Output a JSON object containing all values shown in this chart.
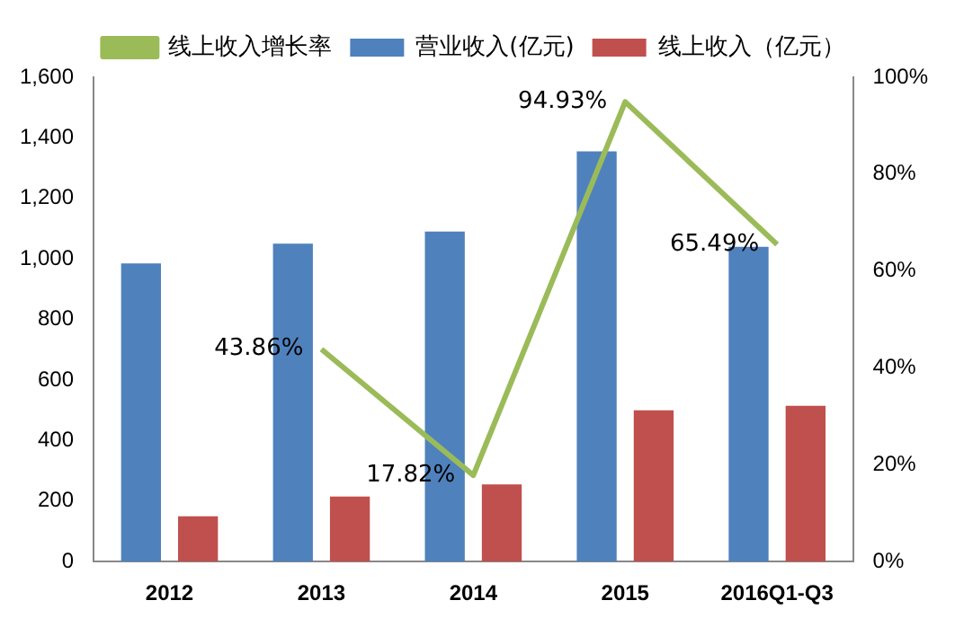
{
  "chart_data": {
    "type": "bar",
    "categories": [
      "2012",
      "2013",
      "2014",
      "2015",
      "2016Q1-Q3"
    ],
    "series": [
      {
        "name": "营业收入(亿元)",
        "color": "#4f81bd",
        "values": [
          985,
          1050,
          1090,
          1355,
          1040
        ]
      },
      {
        "name": "线上收入（亿元）",
        "color": "#c0504d",
        "values": [
          150,
          215,
          255,
          500,
          515
        ]
      },
      {
        "name": "线上收入增长率",
        "type": "line",
        "axis": "y2",
        "color": "#9bbb59",
        "values": [
          null,
          43.86,
          17.82,
          94.93,
          65.49
        ],
        "value_labels": [
          null,
          "43.86%",
          "17.82%",
          "94.93%",
          "65.49%"
        ],
        "marker": "none"
      }
    ],
    "ylim": [
      0,
      1600
    ],
    "yticks": [
      0,
      200,
      400,
      600,
      800,
      {
        "value": 1000,
        "label": "1,000"
      },
      {
        "value": 1200,
        "label": "1,200"
      },
      {
        "value": 1400,
        "label": "1,400"
      },
      {
        "value": 1600,
        "label": "1,600"
      }
    ],
    "y2lim": [
      0,
      100
    ],
    "y2ticks": [
      {
        "value": 0,
        "label": "0%"
      },
      {
        "value": 20,
        "label": "20%"
      },
      {
        "value": 40,
        "label": "40%"
      },
      {
        "value": 60,
        "label": "60%"
      },
      {
        "value": 80,
        "label": "80%"
      },
      {
        "value": 100,
        "label": "100%"
      }
    ],
    "grid": false,
    "legend": "top"
  }
}
